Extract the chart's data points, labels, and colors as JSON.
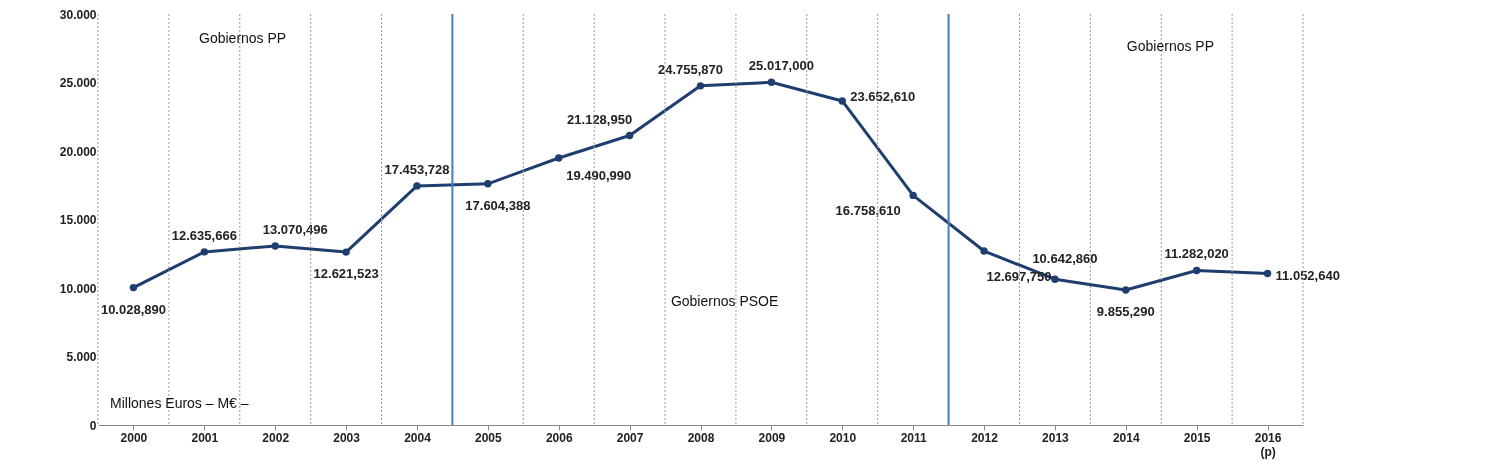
{
  "chart_data": {
    "type": "line",
    "x": [
      2000,
      2001,
      2002,
      2003,
      2004,
      2005,
      2006,
      2007,
      2008,
      2009,
      2010,
      2011,
      2012,
      2013,
      2014,
      2015,
      2016
    ],
    "series": [
      {
        "color": "#1f3d6e",
        "values": [
          10028.89,
          12635.666,
          13070.496,
          12621.523,
          17453.728,
          17604.388,
          19490.99,
          21128.95,
          24755.87,
          25017,
          23652.61,
          16758.61,
          12697.75,
          10642.86,
          9855.29,
          11282.02,
          11052.64
        ],
        "value_labels": [
          "10.028,890",
          "12.635,666",
          "13.070,496",
          "12.621,523",
          "17.453,728",
          "17.604,388",
          "19.490,990",
          "21.128,950",
          "24.755,870",
          "25.017,000",
          "23.652,610",
          "16.758,610",
          "12.697,750",
          "10.642,860",
          "9.855,290",
          "11.282,020",
          "11.052,640"
        ]
      }
    ],
    "xlim": [
      1999.5,
      2016.5
    ],
    "xticks": [
      2000,
      2001,
      2002,
      2003,
      2004,
      2005,
      2006,
      2007,
      2008,
      2009,
      2010,
      2011,
      2012,
      2013,
      2014,
      2015,
      {
        "value": 2016,
        "label": "2016 (p)"
      }
    ],
    "ylim": [
      0,
      30000
    ],
    "yticks": [
      0,
      {
        "value": 5000,
        "label": "5.000"
      },
      {
        "value": 10000,
        "label": "10.000"
      },
      {
        "value": 15000,
        "label": "15.000"
      },
      {
        "value": 20000,
        "label": "20.000"
      },
      {
        "value": 25000,
        "label": "25.000"
      },
      {
        "value": 30000,
        "label": "30.000"
      }
    ],
    "grid": "x",
    "marker": "circle",
    "line_style": "solid",
    "ref_lines": [
      {
        "axis": "x",
        "value": 2004.5,
        "color": "#4a7ebb"
      },
      {
        "axis": "x",
        "value": 2011.5,
        "color": "#4a7ebb"
      }
    ],
    "annotations": [
      "Gobiernos PP",
      "Gobiernos PSOE",
      "Gobiernos PP",
      "Millones Euros – M€ –"
    ]
  }
}
